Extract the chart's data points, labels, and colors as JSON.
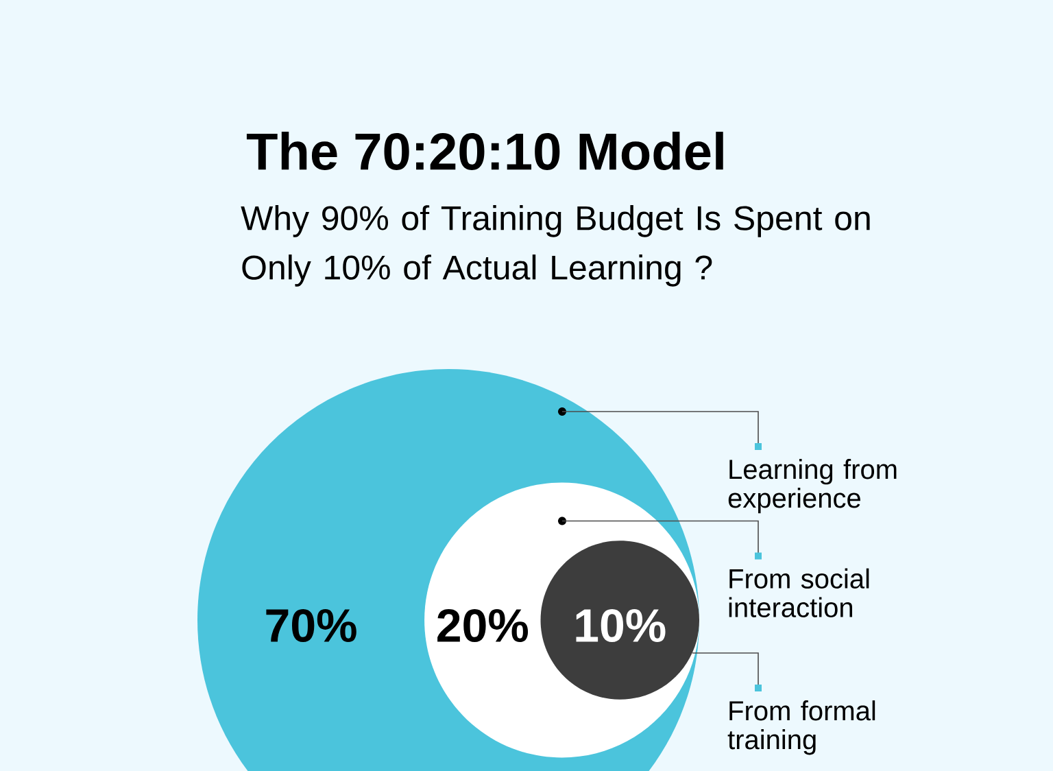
{
  "chart_data": {
    "type": "other",
    "title": "The 70:20:10 Model",
    "subtitle": "Why 90% of Training Budget Is Spent on Only 10% of Actual Learning ?",
    "categories": [
      "Learning from experience",
      "From social interaction",
      "From formal training"
    ],
    "values": [
      70,
      20,
      10
    ],
    "value_labels": [
      "70%",
      "20%",
      "10%"
    ],
    "colors": [
      "#4bc4dc",
      "#ffffff",
      "#3d3d3d"
    ]
  }
}
